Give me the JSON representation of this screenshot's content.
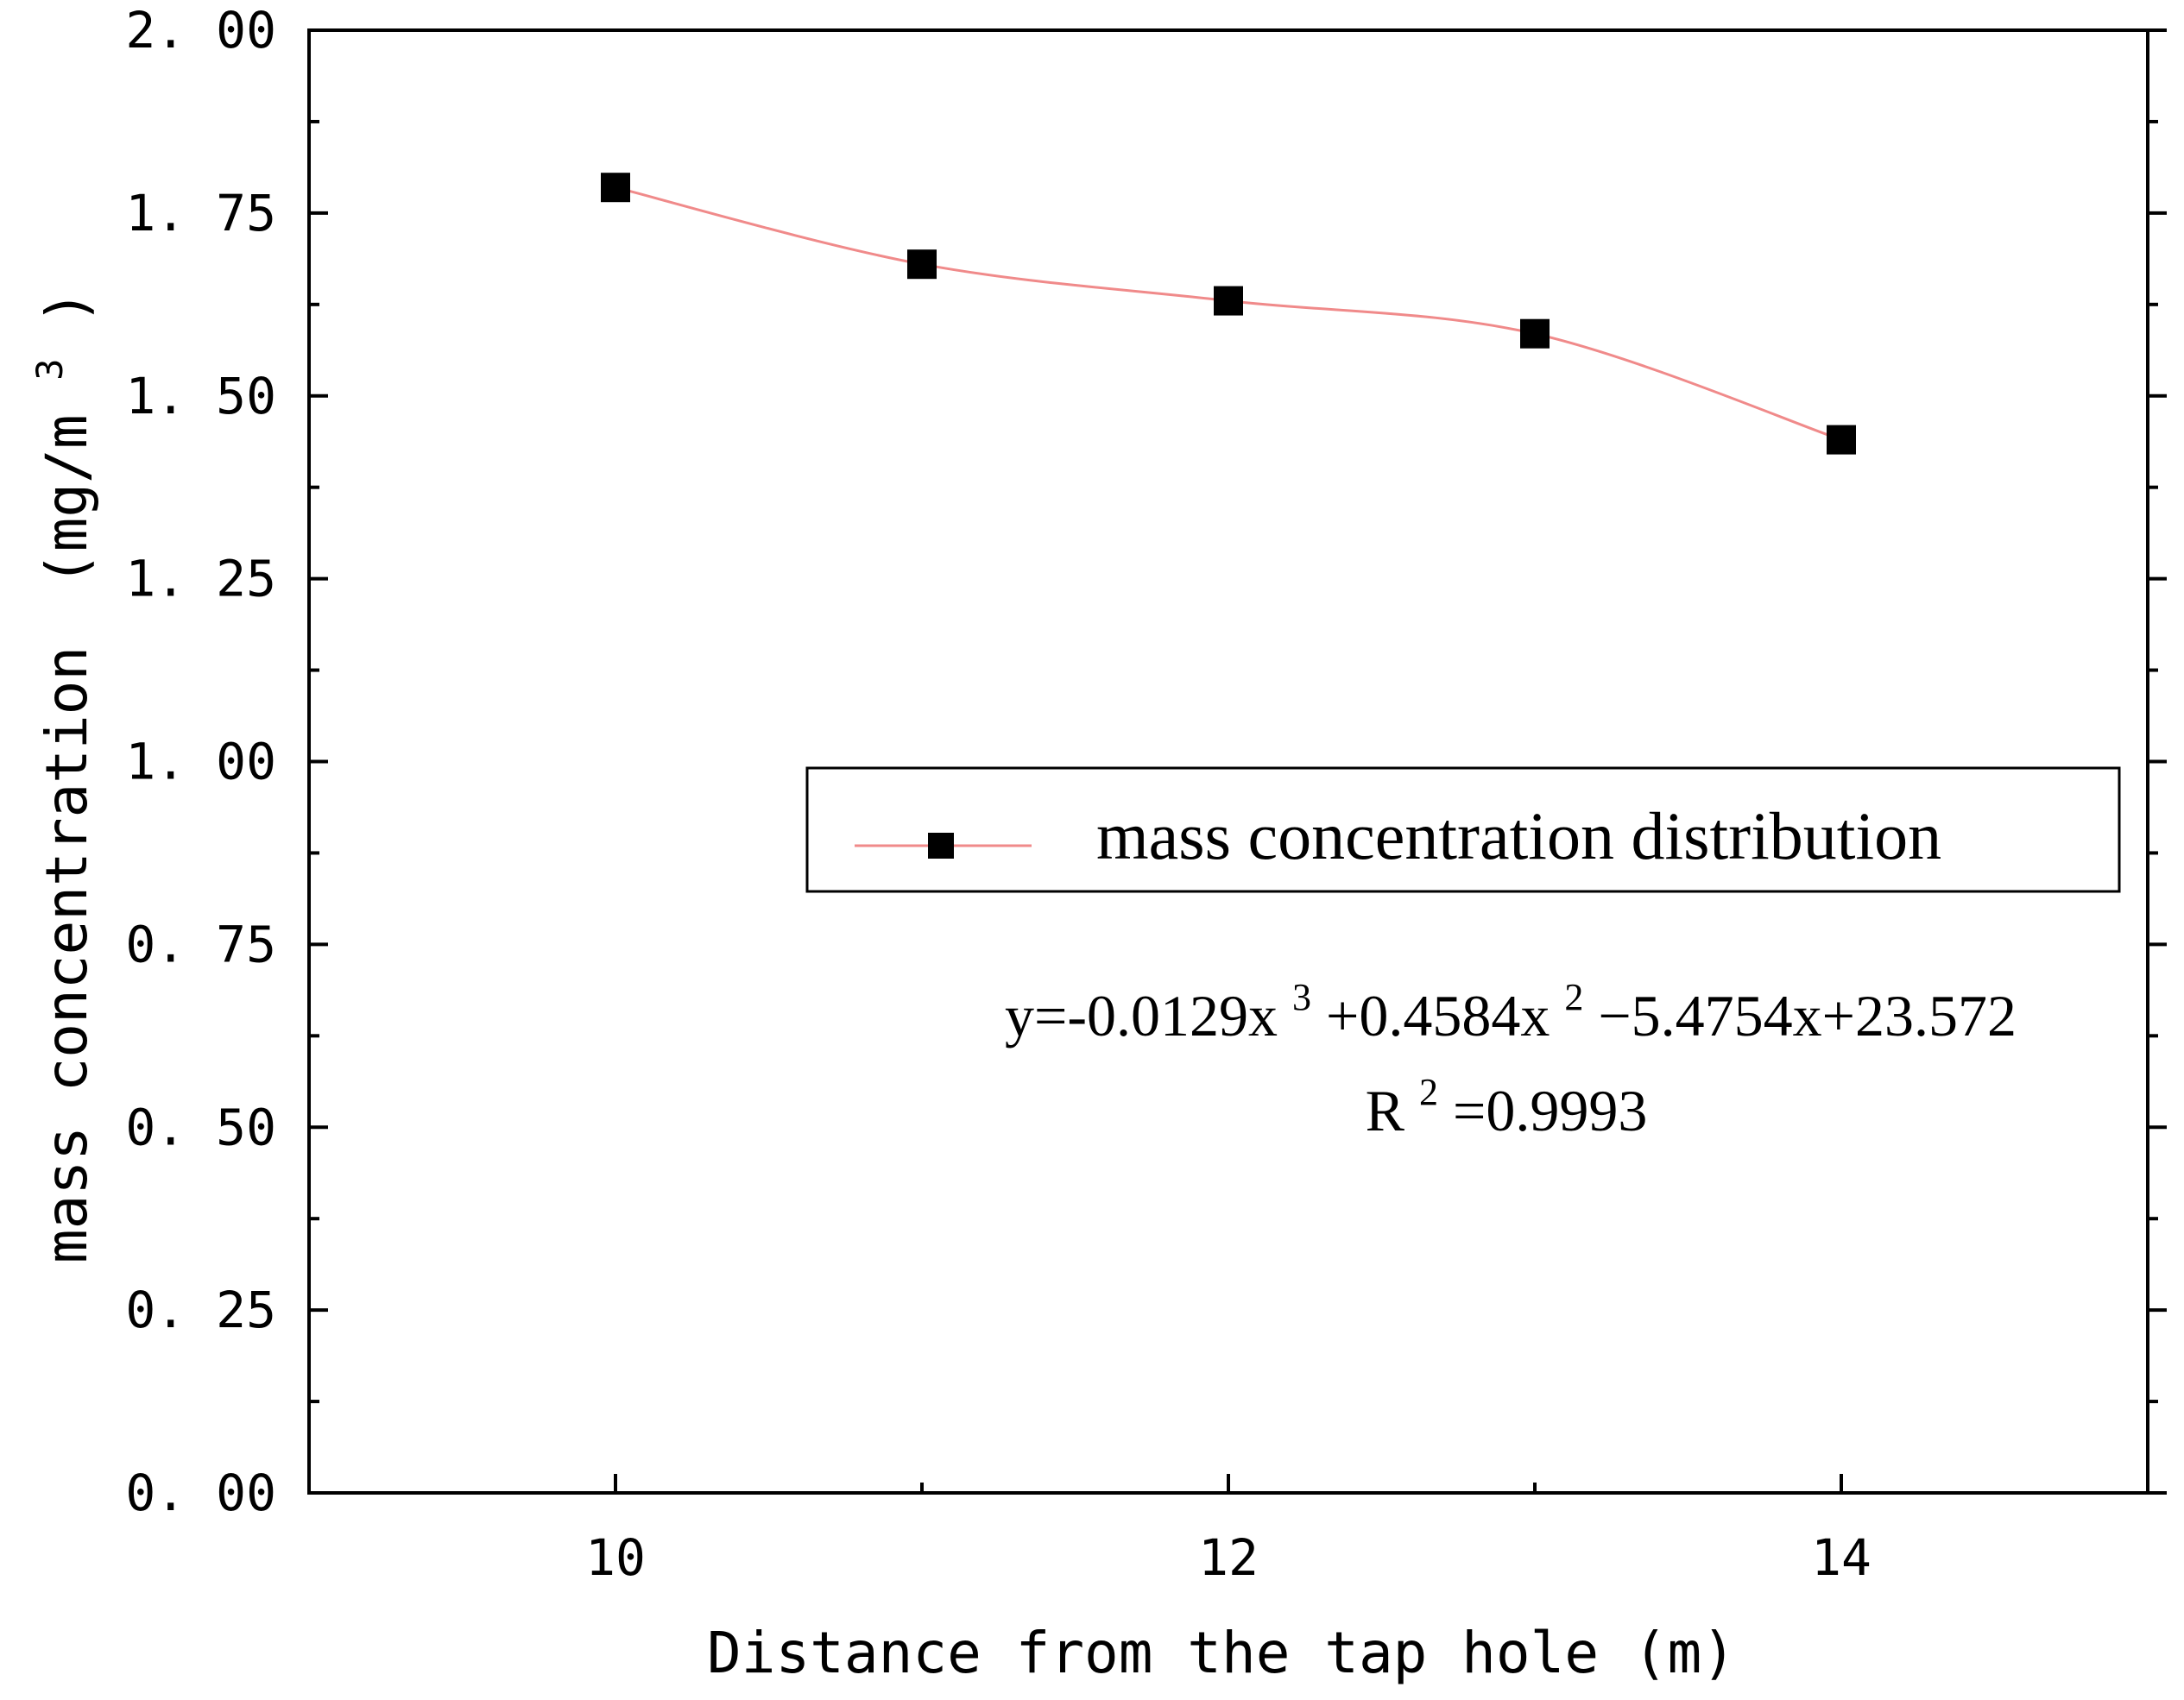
{
  "chart_data": {
    "type": "line",
    "title": "",
    "xlabel": "Distance from the tap hole (m)",
    "ylabel": {
      "base": "mass concentration",
      "open": "(mg/m",
      "sup": "3",
      "close": ")"
    },
    "xlim": [
      9,
      15
    ],
    "ylim": [
      0,
      2
    ],
    "x_ticks": [
      10,
      12,
      14
    ],
    "x_tick_labels": [
      "10",
      "12",
      "14"
    ],
    "y_ticks": [
      0,
      0.25,
      0.5,
      0.75,
      1.0,
      1.25,
      1.5,
      1.75,
      2.0
    ],
    "y_tick_labels": [
      "0. 00",
      "0. 25",
      "0. 50",
      "0. 75",
      "1. 00",
      "1. 25",
      "1. 50",
      "1. 75",
      "2. 00"
    ],
    "series": [
      {
        "name": "mass concentration distribution",
        "x": [
          10,
          11,
          12,
          13,
          14
        ],
        "y": [
          1.785,
          1.68,
          1.63,
          1.585,
          1.44
        ],
        "marker": "square",
        "marker_color": "#000000",
        "line_color": "#f08a8a"
      }
    ],
    "fit": {
      "coefficients": [
        -0.0129,
        0.4584,
        -5.4754,
        23.572
      ],
      "equation_parts": [
        "y=-0.0129x",
        "3",
        "+0.4584x",
        "2",
        "−5.4754x+23.572"
      ],
      "r2_parts": [
        "R",
        "2",
        "=0.9993"
      ]
    },
    "legend": {
      "position": "center-right",
      "entries": [
        "mass concentration distribution"
      ]
    },
    "grid": false
  }
}
